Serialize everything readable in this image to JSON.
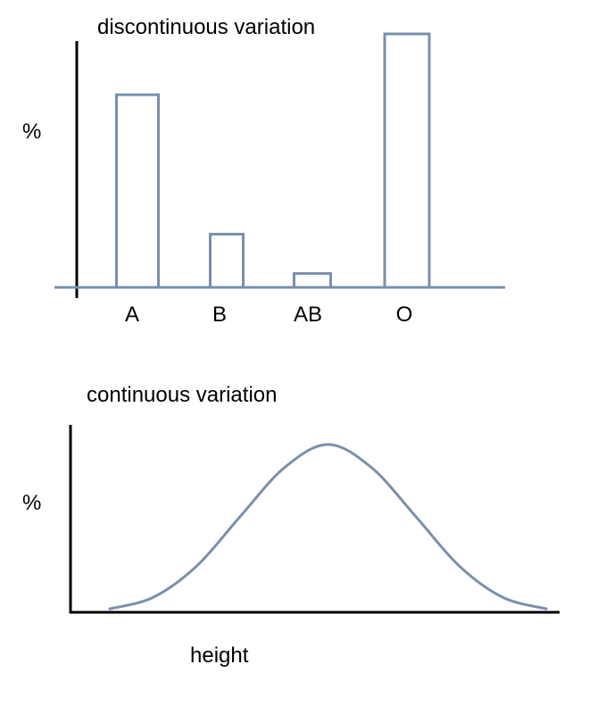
{
  "colors": {
    "axis": "#000000",
    "series": "#7890ad",
    "text": "#000000",
    "background": "#ffffff"
  },
  "chart_data": [
    {
      "type": "bar",
      "title": "discontinuous variation",
      "ylabel": "%",
      "xlabel": "",
      "categories": [
        "A",
        "B",
        "AB",
        "O"
      ],
      "values": [
        76,
        21,
        5.5,
        100
      ],
      "ylim": [
        0,
        100
      ],
      "grid": false,
      "legend": "none"
    },
    {
      "type": "line",
      "title": "continuous variation",
      "ylabel": "%",
      "xlabel": "height",
      "x": [
        0,
        10,
        20,
        30,
        40,
        50,
        60,
        70,
        80,
        90,
        100
      ],
      "y": [
        1,
        8,
        27,
        57,
        86,
        100,
        86,
        57,
        27,
        8,
        1
      ],
      "ylim": [
        0,
        100
      ],
      "grid": false,
      "legend": "none"
    }
  ]
}
